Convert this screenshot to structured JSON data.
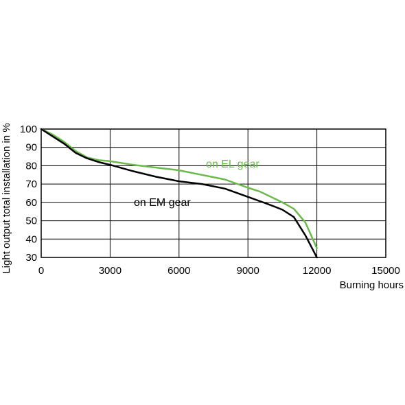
{
  "chart_data": {
    "type": "line",
    "xlabel": "Burning hours",
    "ylabel": "Light output total installation in %",
    "xlim": [
      0,
      15000
    ],
    "ylim": [
      30,
      100
    ],
    "xticks": [
      0,
      3000,
      6000,
      9000,
      12000,
      15000
    ],
    "yticks": [
      30,
      40,
      50,
      60,
      70,
      80,
      90,
      100
    ],
    "xtick_labels": [
      "0",
      "3000",
      "6000",
      "9000",
      "12000",
      "15000"
    ],
    "ytick_labels": [
      "30",
      "40",
      "50",
      "60",
      "70",
      "80",
      "90",
      "100"
    ],
    "grid": true,
    "legend": "none",
    "series": [
      {
        "name": "on EL gear",
        "color": "#6ab94a",
        "x": [
          0,
          500,
          1000,
          1500,
          2000,
          2500,
          3000,
          4000,
          5000,
          6000,
          7000,
          8000,
          9000,
          9500,
          10000,
          10500,
          11000,
          11500,
          12000
        ],
        "y": [
          100,
          97,
          93,
          88,
          84.5,
          83,
          82.5,
          80.5,
          79,
          77.5,
          75,
          72.5,
          68,
          66,
          63,
          60,
          56.5,
          49,
          35
        ]
      },
      {
        "name": "on EM gear",
        "color": "#000000",
        "x": [
          0,
          500,
          1000,
          1500,
          2000,
          2500,
          3000,
          4000,
          5000,
          6000,
          7000,
          8000,
          9000,
          10000,
          10500,
          11000,
          11500,
          12000
        ],
        "y": [
          100,
          96,
          92,
          87,
          84,
          82,
          80.5,
          77,
          74,
          71.5,
          70,
          67.5,
          63,
          58.5,
          56,
          52,
          42,
          30
        ]
      }
    ]
  }
}
